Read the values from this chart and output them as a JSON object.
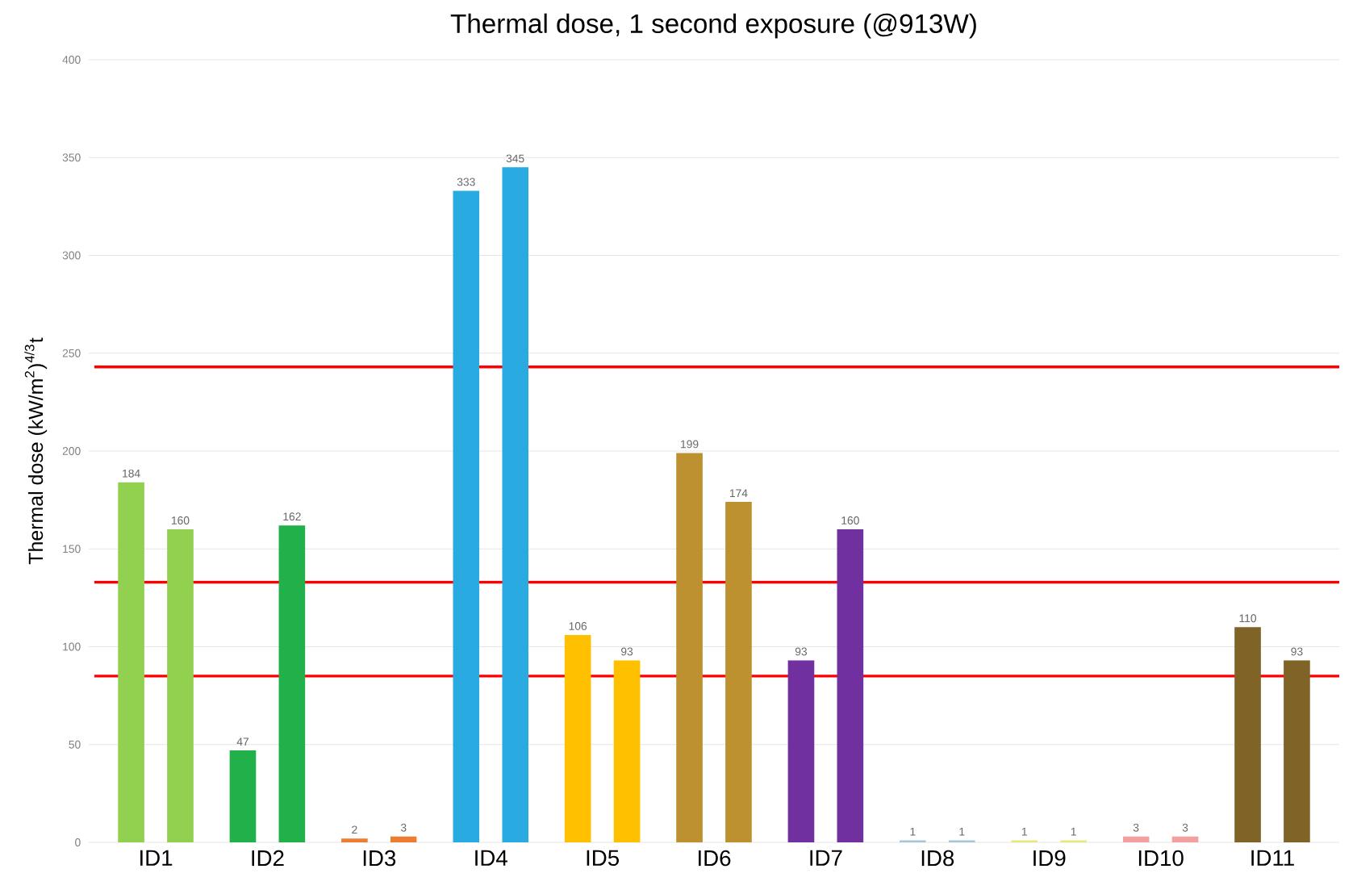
{
  "chart_data": {
    "type": "bar",
    "title": "Thermal dose, 1 second exposure (@913W)",
    "ylabel": "Thermal dose (kW/m$^{2}$)$^{4/3}$t",
    "categories": [
      "ID1",
      "ID2",
      "ID3",
      "ID4",
      "ID5",
      "ID6",
      "ID7",
      "ID8",
      "ID9",
      "ID10",
      "ID11"
    ],
    "series": [
      {
        "values": [
          184,
          47,
          2,
          333,
          106,
          199,
          93,
          1,
          1,
          3,
          110
        ],
        "colors": [
          "#92d050",
          "#22b04b",
          "#ed7d31",
          "#29abe2",
          "#ffc000",
          "#bd9130",
          "#7030a0",
          "#a5c8d8",
          "#e8e87a",
          "#f4a0a0",
          "#7f6327"
        ]
      },
      {
        "values": [
          160,
          162,
          3,
          345,
          93,
          174,
          160,
          1,
          1,
          3,
          93
        ],
        "colors": [
          "#92d050",
          "#22b04b",
          "#ed7d31",
          "#29abe2",
          "#ffc000",
          "#bd9130",
          "#7030a0",
          "#a5c8d8",
          "#e8e87a",
          "#f4a0a0",
          "#7f6327"
        ]
      }
    ],
    "ylim": [
      0,
      400
    ],
    "yticks": [
      0,
      50,
      100,
      150,
      200,
      250,
      300,
      350,
      400
    ],
    "grid": "y",
    "data_labels": true,
    "ref_lines": [
      {
        "axis": "y",
        "value": 243,
        "color": "#ff0000"
      },
      {
        "axis": "y",
        "value": 133,
        "color": "#ff0000"
      },
      {
        "axis": "y",
        "value": 85,
        "color": "#ff0000"
      }
    ]
  }
}
